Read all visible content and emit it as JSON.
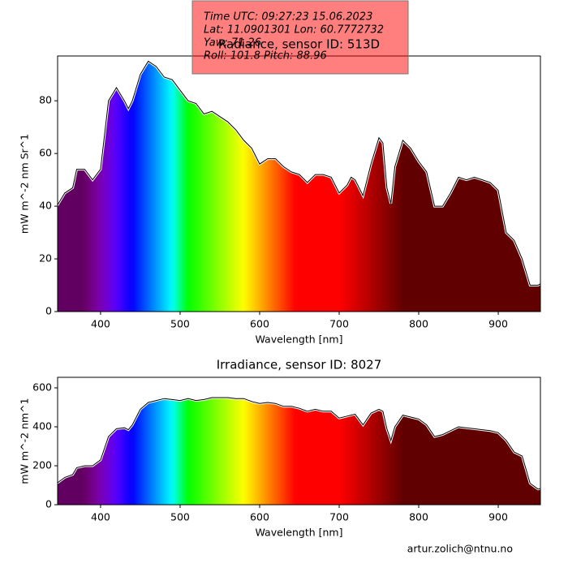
{
  "chart_data": [
    {
      "type": "area",
      "title": "Radiance, sensor ID: 513D",
      "xlabel": "Wavelength [nm]",
      "ylabel": "mW m^-2 nm Sr^1",
      "annotation": [
        "Time UTC: 09:27:23 15.06.2023",
        "Lat: 11.0901301 Lon: 60.7772732",
        "Yaw: 71.26",
        "Roll: 101.8 Pitch: 88.96"
      ],
      "x": [
        345,
        355,
        365,
        370,
        380,
        390,
        400,
        410,
        420,
        430,
        435,
        440,
        450,
        460,
        470,
        480,
        490,
        500,
        510,
        520,
        530,
        540,
        550,
        560,
        570,
        580,
        590,
        600,
        610,
        620,
        630,
        640,
        650,
        660,
        670,
        680,
        690,
        700,
        710,
        715,
        720,
        730,
        740,
        750,
        755,
        760,
        765,
        770,
        780,
        790,
        800,
        810,
        820,
        830,
        840,
        850,
        860,
        870,
        880,
        890,
        900,
        910,
        920,
        930,
        940,
        950,
        955
      ],
      "values": [
        40,
        45,
        47,
        54,
        54,
        50,
        54,
        80,
        85,
        80,
        77,
        80,
        90,
        95,
        93,
        89,
        88,
        84,
        80,
        79,
        75,
        76,
        74,
        72,
        69,
        65,
        62,
        56,
        58,
        58,
        55,
        53,
        52,
        49,
        52,
        52,
        51,
        45,
        48,
        51,
        50,
        44,
        56,
        66,
        64,
        47,
        41,
        55,
        65,
        62,
        57,
        53,
        40,
        40,
        45,
        51,
        50,
        51,
        50,
        49,
        46,
        30,
        27,
        20,
        10,
        10,
        11
      ],
      "xlim": [
        346,
        953
      ],
      "xticks": [
        400,
        500,
        600,
        700,
        800,
        900
      ],
      "ylim": [
        0,
        97
      ],
      "yticks": [
        0,
        20,
        40,
        60,
        80
      ]
    },
    {
      "type": "area",
      "title": "Irradiance, sensor ID: 8027",
      "xlabel": "Wavelength [nm]",
      "ylabel": "mW m^-2 nm^1",
      "x": [
        345,
        355,
        365,
        370,
        380,
        390,
        400,
        410,
        420,
        430,
        435,
        440,
        450,
        460,
        470,
        480,
        490,
        500,
        510,
        520,
        530,
        540,
        550,
        560,
        570,
        580,
        590,
        600,
        610,
        620,
        630,
        640,
        650,
        660,
        670,
        680,
        690,
        700,
        710,
        715,
        720,
        730,
        740,
        750,
        755,
        760,
        765,
        770,
        780,
        790,
        800,
        810,
        820,
        830,
        840,
        850,
        860,
        870,
        880,
        890,
        900,
        910,
        920,
        930,
        940,
        950,
        955
      ],
      "values": [
        110,
        140,
        155,
        190,
        200,
        200,
        230,
        350,
        390,
        395,
        385,
        410,
        490,
        525,
        535,
        545,
        540,
        535,
        545,
        535,
        540,
        550,
        550,
        550,
        545,
        545,
        530,
        520,
        525,
        520,
        505,
        505,
        495,
        480,
        490,
        480,
        480,
        445,
        455,
        460,
        465,
        410,
        470,
        490,
        480,
        390,
        330,
        400,
        460,
        450,
        440,
        410,
        350,
        360,
        380,
        400,
        395,
        390,
        385,
        380,
        370,
        330,
        270,
        250,
        110,
        80,
        85
      ],
      "xlim": [
        346,
        953
      ],
      "xticks": [
        400,
        500,
        600,
        700,
        800,
        900
      ],
      "ylim": [
        0,
        654
      ],
      "yticks": [
        0,
        200,
        400,
        600
      ]
    }
  ],
  "footer": "artur.zolich@ntnu.no"
}
